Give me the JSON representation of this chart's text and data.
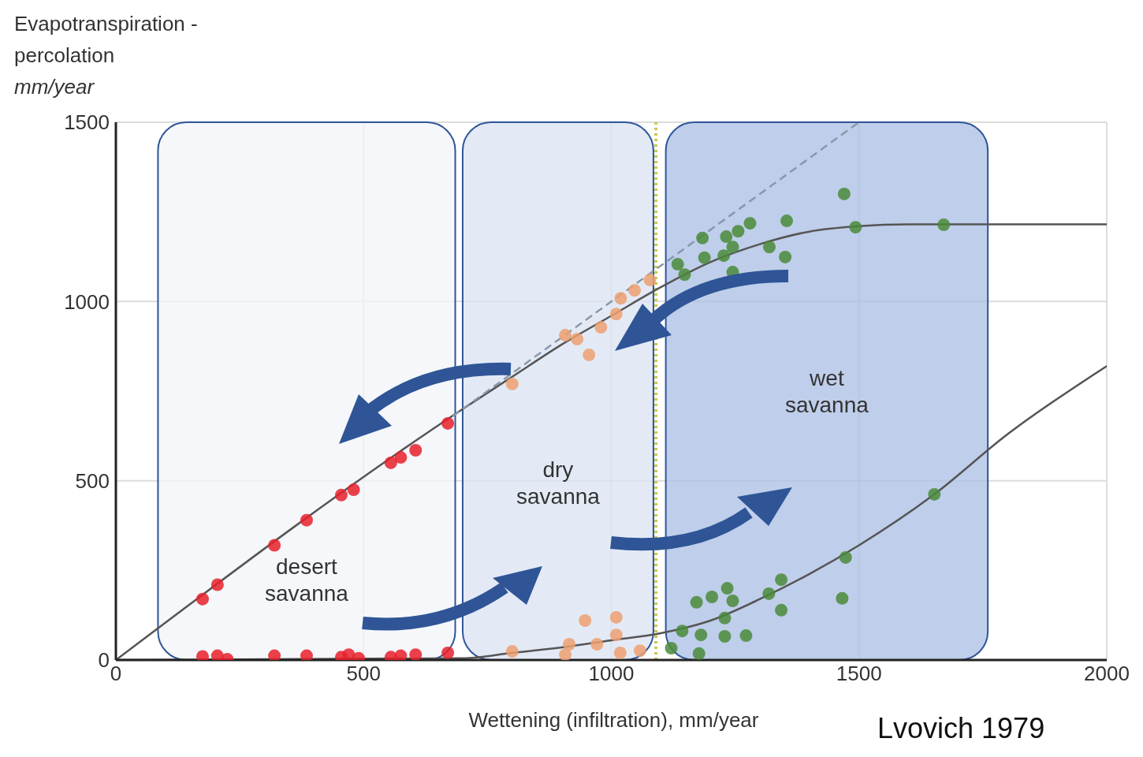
{
  "chart_data": {
    "type": "scatter",
    "ylabel": "Evapotranspiration -\npercolation\nmm/year",
    "xlabel": "Wettening (infiltration), mm/year",
    "xlim": [
      0,
      2000
    ],
    "ylim": [
      0,
      1500
    ],
    "xticks": [
      0,
      500,
      1000,
      1500,
      2000
    ],
    "yticks": [
      0,
      500,
      1000,
      1500
    ],
    "grid": true,
    "marker": "circle",
    "annotations": [
      "Lvovich 1979"
    ],
    "bands": [
      {
        "axis": "x",
        "from": 85,
        "to": 685,
        "label": "desert savanna",
        "color": "#f2f4f8"
      },
      {
        "axis": "x",
        "from": 700,
        "to": 1085,
        "label": "dry savanna",
        "color": "#dae3f3"
      },
      {
        "axis": "x",
        "from": 1110,
        "to": 1760,
        "label": "wet savanna",
        "color": "#a9bde3"
      }
    ],
    "ref_lines": [
      {
        "axis": "x",
        "value": 1090,
        "color": "#c8c850",
        "line_style": "dotted"
      }
    ],
    "series": [
      {
        "type": "line",
        "color": "#555555",
        "marker": "none",
        "x": [
          0,
          700,
          800,
          900,
          1000,
          1100,
          1200,
          1300,
          1400,
          1500,
          1600,
          2000
        ],
        "values": [
          0,
          700,
          790,
          880,
          960,
          1040,
          1110,
          1160,
          1195,
          1210,
          1215,
          1215
        ]
      },
      {
        "type": "line",
        "color": "#555555",
        "marker": "none",
        "x": [
          0,
          700,
          800,
          900,
          1000,
          1100,
          1200,
          1300,
          1400,
          1500,
          1650,
          1800,
          2000
        ],
        "values": [
          0,
          5,
          20,
          35,
          55,
          75,
          110,
          170,
          240,
          320,
          460,
          630,
          820
        ]
      },
      {
        "type": "line",
        "color": "#8899aa",
        "marker": "none",
        "line_style": "dashed",
        "x": [
          680,
          1500
        ],
        "values": [
          680,
          1500
        ]
      },
      {
        "color": "#e8202a",
        "x": [
          175,
          205,
          320,
          385,
          455,
          480,
          555,
          575,
          605,
          670,
          175,
          205,
          225,
          320,
          385,
          455,
          470,
          490,
          555,
          575,
          605,
          670
        ],
        "values": [
          170,
          210,
          320,
          390,
          460,
          475,
          550,
          565,
          585,
          660,
          10,
          12,
          2,
          12,
          12,
          8,
          15,
          5,
          8,
          12,
          15,
          20
        ]
      },
      {
        "color": "#eda070",
        "x": [
          800,
          907,
          931,
          955,
          979,
          1010,
          1019,
          1047,
          1078,
          800,
          915,
          947,
          1010,
          1010,
          971,
          907,
          1018,
          1058
        ],
        "values": [
          770,
          906,
          895,
          851,
          928,
          965,
          1009,
          1031,
          1060,
          24,
          44,
          110,
          119,
          70,
          44,
          15,
          20,
          26
        ]
      },
      {
        "color": "#4a8a3a",
        "x": [
          1470,
          1354,
          1280,
          1256,
          1232,
          1184,
          1188,
          1227,
          1245,
          1319,
          1351,
          1493,
          1671,
          1134,
          1148,
          1245,
          1652,
          1473,
          1343,
          1318,
          1466,
          1343,
          1234,
          1203,
          1172,
          1245,
          1229,
          1143,
          1181,
          1229,
          1272,
          1121,
          1177
        ],
        "values": [
          1300,
          1225,
          1218,
          1196,
          1181,
          1177,
          1122,
          1128,
          1152,
          1152,
          1124,
          1207,
          1214,
          1104,
          1075,
          1082,
          462,
          286,
          224,
          185,
          172,
          139,
          200,
          176,
          161,
          165,
          117,
          81,
          70,
          66,
          68,
          33,
          18
        ]
      }
    ]
  }
}
